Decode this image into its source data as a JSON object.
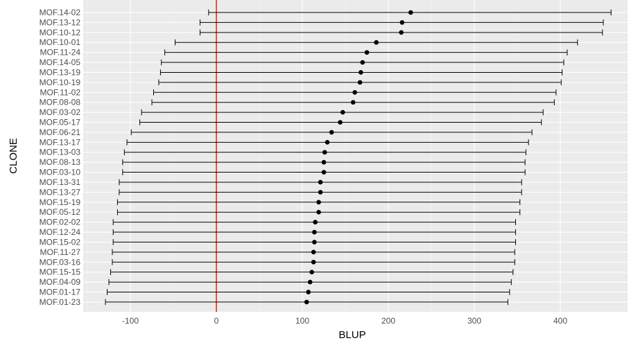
{
  "chart_data": {
    "type": "errorbar",
    "xlabel": "BLUP",
    "ylabel": "CLONE",
    "xlim": [
      -150,
      470
    ],
    "x_ticks": [
      -100,
      0,
      100,
      200,
      300,
      400
    ],
    "x_tick_labels": [
      "-100",
      "0",
      "100",
      "200",
      "300",
      "400"
    ],
    "reference_line": {
      "x": 0,
      "color": "#e8271e"
    },
    "grid": true,
    "background": "#ebebeb",
    "categories": [
      "MOF.14-02",
      "MOF.13-12",
      "MOF.10-12",
      "MOF.10-01",
      "MOF.11-24",
      "MOF.14-05",
      "MOF.13-19",
      "MOF.10-19",
      "MOF.11-02",
      "MOF.08-08",
      "MOF.03-02",
      "MOF.05-17",
      "MOF.06-21",
      "MOF.13-17",
      "MOF.13-03",
      "MOF.08-13",
      "MOF.03-10",
      "MOF.13-31",
      "MOF.13-27",
      "MOF.15-19",
      "MOF.05-12",
      "MOF.02-02",
      "MOF.12-24",
      "MOF.15-02",
      "MOF.11-27",
      "MOF.03-16",
      "MOF.15-15",
      "MOF.04-09",
      "MOF.01-17",
      "MOF.01-23"
    ],
    "blup": [
      226,
      216,
      215,
      186,
      175,
      170,
      168,
      167,
      161,
      159,
      147,
      144,
      134,
      129,
      126,
      125,
      125,
      121,
      121,
      119,
      119,
      115,
      114,
      114,
      113,
      113,
      111,
      109,
      107,
      105
    ],
    "lower": [
      -9,
      -19,
      -19,
      -48,
      -60,
      -64,
      -65,
      -67,
      -73,
      -75,
      -87,
      -89,
      -99,
      -104,
      -107,
      -109,
      -109,
      -113,
      -113,
      -115,
      -115,
      -120,
      -120,
      -120,
      -121,
      -121,
      -123,
      -125,
      -127,
      -129
    ],
    "upper": [
      459,
      450,
      449,
      420,
      408,
      404,
      402,
      401,
      395,
      393,
      380,
      378,
      367,
      363,
      360,
      359,
      359,
      355,
      355,
      353,
      353,
      348,
      348,
      348,
      347,
      347,
      345,
      343,
      341,
      339
    ]
  }
}
